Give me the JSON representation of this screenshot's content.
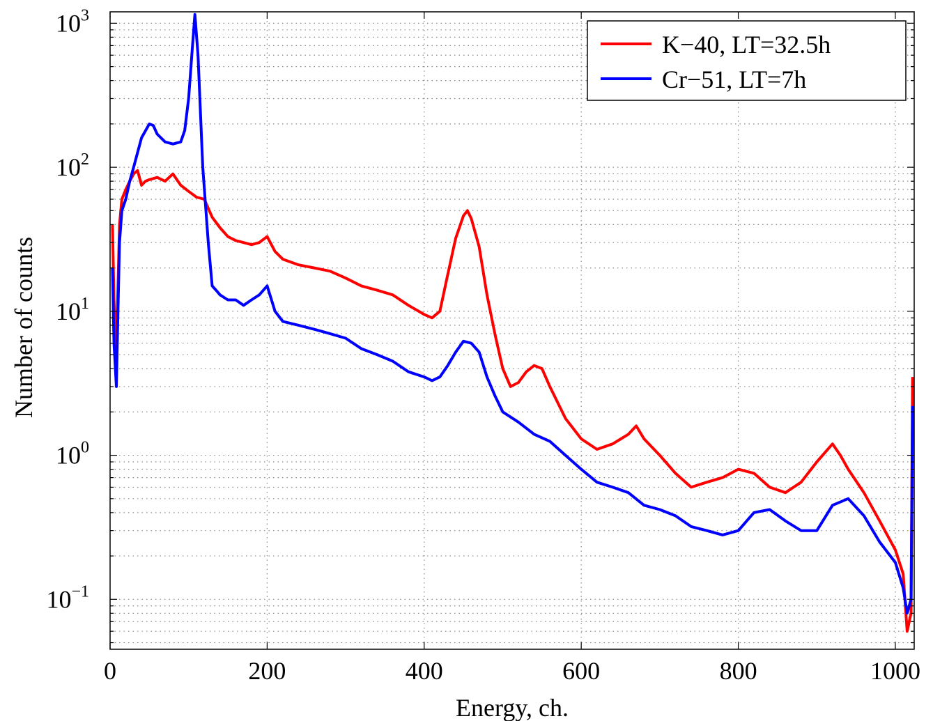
{
  "chart_data": {
    "type": "line",
    "title": "",
    "xlabel": "Energy, ch.",
    "ylabel": "Number of counts",
    "xlim": [
      0,
      1024
    ],
    "ylim": [
      0.045,
      1200
    ],
    "yscale": "log",
    "grid": true,
    "legend_position": "top-right",
    "x_ticks": [
      "0",
      "200",
      "400",
      "600",
      "800",
      "1000"
    ],
    "y_ticks": [
      {
        "base": "10",
        "exp": "−1"
      },
      {
        "base": "10",
        "exp": "0"
      },
      {
        "base": "10",
        "exp": "1"
      },
      {
        "base": "10",
        "exp": "2"
      },
      {
        "base": "10",
        "exp": "3"
      }
    ],
    "series": [
      {
        "name": "K−40, LT=32.5h",
        "color": "#ff0000",
        "x": [
          3,
          5,
          8,
          12,
          15,
          20,
          25,
          30,
          35,
          40,
          45,
          50,
          60,
          70,
          80,
          85,
          90,
          100,
          110,
          120,
          130,
          140,
          150,
          160,
          170,
          180,
          190,
          200,
          210,
          220,
          240,
          260,
          280,
          300,
          320,
          340,
          360,
          380,
          400,
          410,
          420,
          430,
          440,
          450,
          455,
          460,
          470,
          480,
          490,
          500,
          510,
          520,
          530,
          540,
          550,
          560,
          580,
          600,
          620,
          640,
          660,
          670,
          680,
          700,
          720,
          740,
          760,
          780,
          800,
          820,
          840,
          860,
          880,
          900,
          920,
          930,
          940,
          960,
          980,
          1000,
          1010,
          1015,
          1020,
          1022
        ],
        "y": [
          40,
          12,
          5,
          40,
          60,
          70,
          80,
          90,
          95,
          75,
          80,
          82,
          85,
          80,
          90,
          82,
          75,
          68,
          62,
          60,
          45,
          38,
          33,
          31,
          30,
          29,
          30,
          33,
          26,
          23,
          21,
          20,
          19,
          17,
          15,
          14,
          13,
          11,
          9.5,
          9,
          10,
          18,
          32,
          46,
          50,
          44,
          28,
          13,
          7,
          4,
          3,
          3.2,
          3.8,
          4.2,
          4,
          3,
          1.8,
          1.3,
          1.1,
          1.2,
          1.4,
          1.6,
          1.3,
          1.0,
          0.75,
          0.6,
          0.65,
          0.7,
          0.8,
          0.75,
          0.6,
          0.55,
          0.65,
          0.9,
          1.2,
          1.0,
          0.8,
          0.55,
          0.35,
          0.22,
          0.15,
          0.06,
          0.08,
          3.5
        ]
      },
      {
        "name": "Cr−51, LT=7h",
        "color": "#0000ff",
        "x": [
          3,
          5,
          8,
          10,
          12,
          15,
          20,
          25,
          30,
          40,
          50,
          55,
          60,
          70,
          80,
          90,
          95,
          100,
          105,
          108,
          112,
          118,
          125,
          130,
          135,
          140,
          150,
          160,
          170,
          180,
          190,
          200,
          210,
          220,
          240,
          260,
          280,
          300,
          320,
          340,
          360,
          380,
          400,
          410,
          420,
          430,
          440,
          450,
          460,
          470,
          480,
          490,
          500,
          520,
          540,
          560,
          580,
          600,
          620,
          640,
          660,
          680,
          700,
          720,
          740,
          760,
          780,
          800,
          820,
          840,
          860,
          880,
          900,
          920,
          940,
          960,
          980,
          1000,
          1010,
          1015,
          1020,
          1022
        ],
        "y": [
          20,
          6,
          3,
          10,
          30,
          50,
          60,
          80,
          100,
          160,
          200,
          195,
          170,
          150,
          145,
          150,
          180,
          300,
          700,
          1150,
          600,
          100,
          30,
          15,
          14,
          13,
          12,
          12,
          11,
          12,
          13,
          15,
          10,
          8.5,
          8,
          7.5,
          7,
          6.5,
          5.5,
          5,
          4.5,
          3.8,
          3.5,
          3.3,
          3.5,
          4.2,
          5.2,
          6.2,
          6,
          5.2,
          3.5,
          2.6,
          2.0,
          1.7,
          1.4,
          1.25,
          1.0,
          0.8,
          0.65,
          0.6,
          0.55,
          0.45,
          0.42,
          0.38,
          0.32,
          0.3,
          0.28,
          0.3,
          0.4,
          0.42,
          0.35,
          0.3,
          0.3,
          0.45,
          0.5,
          0.38,
          0.25,
          0.18,
          0.12,
          0.08,
          0.1,
          2.2
        ]
      }
    ]
  }
}
